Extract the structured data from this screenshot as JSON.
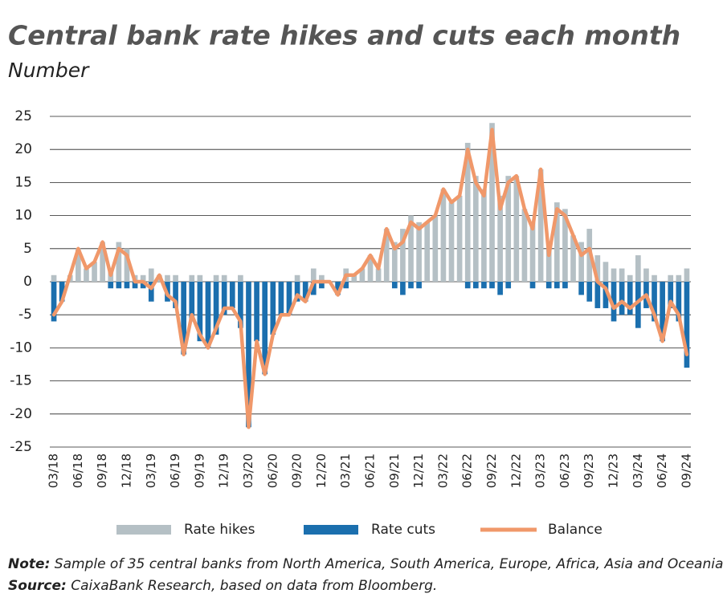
{
  "chart_data": {
    "type": "bar_line",
    "title": "Central bank rate hikes and cuts each month",
    "subtitle": "Number",
    "note_label": "Note:",
    "note_text": "Sample of 35 central banks from North America, South America, Europe, Africa, Asia and Oceania.",
    "source_label": "Source:",
    "source_text": "CaixaBank Research, based on data from Bloomberg.",
    "categories": [
      "03/18",
      null,
      null,
      "06/18",
      null,
      null,
      "09/18",
      null,
      null,
      "12/18",
      null,
      null,
      "03/19",
      null,
      null,
      "06/19",
      null,
      null,
      "09/19",
      null,
      null,
      "12/19",
      null,
      null,
      "03/20",
      null,
      null,
      "06/20",
      null,
      null,
      "09/20",
      null,
      null,
      "12/20",
      null,
      null,
      "03/21",
      null,
      null,
      "06/21",
      null,
      null,
      "09/21",
      null,
      null,
      "12/21",
      null,
      null,
      "03/22",
      null,
      null,
      "06/22",
      null,
      null,
      "09/22",
      null,
      null,
      "12/22",
      null,
      null,
      "03/23",
      null,
      null,
      "06/23",
      null,
      null,
      "09/23",
      null,
      null,
      "12/23",
      null,
      null,
      "03/24",
      null,
      null,
      "06/24",
      null,
      null,
      "09/24"
    ],
    "series": [
      {
        "name": "Rate hikes",
        "kind": "bar",
        "color": "#b5c0c5",
        "values": [
          1,
          0,
          1,
          5,
          2,
          3,
          6,
          2,
          6,
          5,
          1,
          1,
          2,
          1,
          1,
          1,
          0,
          1,
          1,
          0,
          1,
          1,
          0,
          1,
          0,
          0,
          0,
          0,
          0,
          0,
          1,
          0,
          2,
          1,
          0,
          0,
          2,
          1,
          2,
          4,
          2,
          8,
          6,
          8,
          10,
          9,
          9,
          10,
          14,
          12,
          13,
          21,
          16,
          14,
          24,
          13,
          16,
          16,
          11,
          9,
          17,
          5,
          12,
          11,
          7,
          6,
          8,
          4,
          3,
          2,
          2,
          1,
          4,
          2,
          1,
          0,
          1,
          1,
          2
        ]
      },
      {
        "name": "Rate cuts",
        "kind": "bar",
        "color": "#1b6fae",
        "values": [
          -6,
          -3,
          0,
          0,
          0,
          0,
          0,
          -1,
          -1,
          -1,
          -1,
          -1,
          -3,
          0,
          -3,
          -4,
          -11,
          -6,
          -9,
          -10,
          -8,
          -5,
          -4,
          -7,
          -22,
          -9,
          -14,
          -8,
          -5,
          -5,
          -3,
          -3,
          -2,
          -1,
          0,
          -2,
          -1,
          0,
          0,
          0,
          0,
          0,
          -1,
          -2,
          -1,
          -1,
          0,
          0,
          0,
          0,
          0,
          -1,
          -1,
          -1,
          -1,
          -2,
          -1,
          0,
          0,
          -1,
          0,
          -1,
          -1,
          -1,
          0,
          -2,
          -3,
          -4,
          -4,
          -6,
          -5,
          -5,
          -7,
          -4,
          -6,
          -9,
          -4,
          -6,
          -13
        ]
      },
      {
        "name": "Balance",
        "kind": "line",
        "color": "#f0986a",
        "values": [
          -5,
          -3,
          1,
          5,
          2,
          3,
          6,
          1,
          5,
          4,
          0,
          0,
          -1,
          1,
          -2,
          -3,
          -11,
          -5,
          -8,
          -10,
          -7,
          -4,
          -4,
          -6,
          -22,
          -9,
          -14,
          -8,
          -5,
          -5,
          -2,
          -3,
          0,
          0,
          0,
          -2,
          1,
          1,
          2,
          4,
          2,
          8,
          5,
          6,
          9,
          8,
          9,
          10,
          14,
          12,
          13,
          20,
          15,
          13,
          23,
          11,
          15,
          16,
          11,
          8,
          17,
          4,
          11,
          10,
          7,
          4,
          5,
          0,
          -1,
          -4,
          -3,
          -4,
          -3,
          -2,
          -5,
          -9,
          -3,
          -5,
          -11
        ]
      }
    ],
    "ylim": [
      -25,
      25
    ],
    "yticks": [
      -25,
      -20,
      -15,
      -10,
      -5,
      0,
      5,
      10,
      15,
      20,
      25
    ],
    "grid": true
  }
}
